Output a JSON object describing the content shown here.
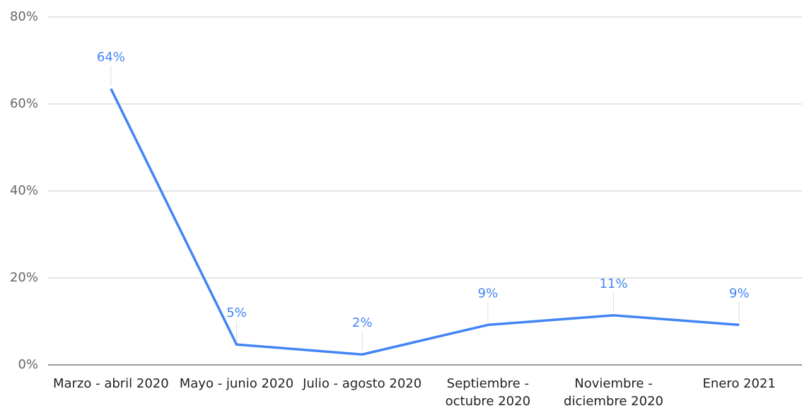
{
  "chart_data": {
    "type": "line",
    "categories": [
      "Marzo - abril 2020",
      "Mayo - junio 2020",
      "Julio - agosto 2020",
      "Septiembre - octubre 2020",
      "Noviembre - diciembre 2020",
      "Enero 2021"
    ],
    "series": [
      {
        "color": "#4285f4",
        "values": [
          63.5,
          4.7,
          2.4,
          9.2,
          11.4,
          9.2
        ],
        "value_labels": [
          "64%",
          "5%",
          "2%",
          "9%",
          "11%",
          "9%"
        ]
      }
    ],
    "ylim": [
      0,
      80
    ],
    "yticks": [
      {
        "value": 0,
        "label": "0%"
      },
      {
        "value": 20,
        "label": "20%"
      },
      {
        "value": 40,
        "label": "40%"
      },
      {
        "value": 60,
        "label": "60%"
      },
      {
        "value": 80,
        "label": "80%"
      }
    ],
    "grid": true
  }
}
